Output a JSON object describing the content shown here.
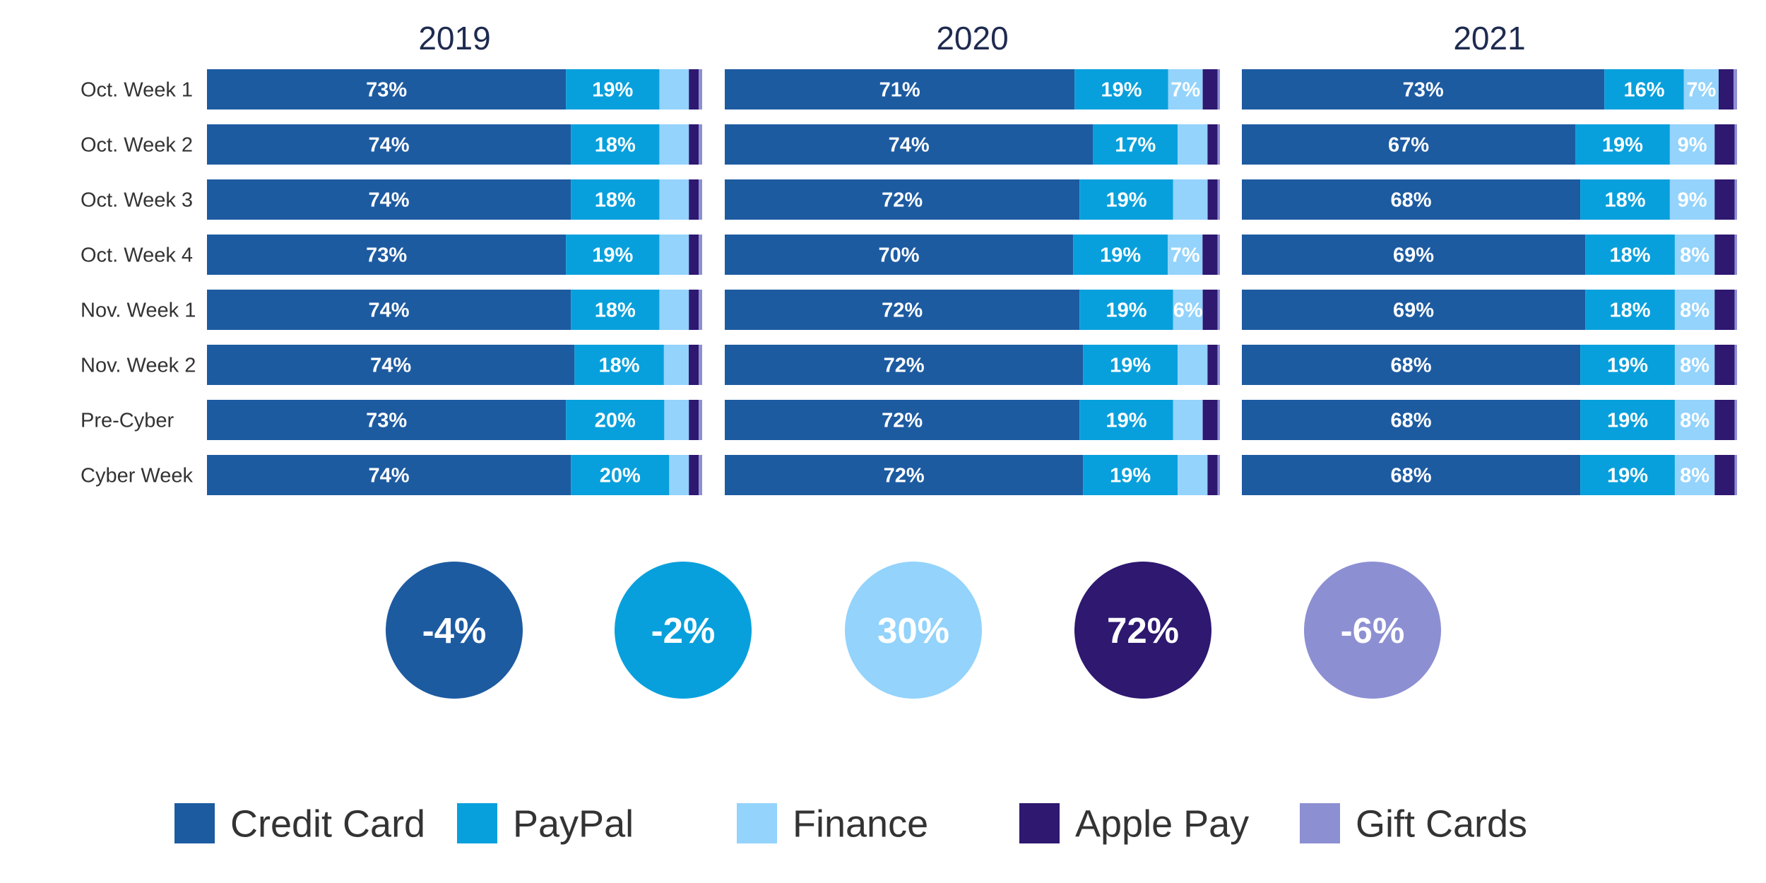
{
  "chart_data": {
    "type": "bar",
    "orientation": "horizontal",
    "stacked": "100%",
    "categories": [
      "Oct. Week 1",
      "Oct. Week 2",
      "Oct. Week 3",
      "Oct. Week 4",
      "Nov. Week 1",
      "Nov. Week 2",
      "Pre-Cyber",
      "Cyber Week"
    ],
    "segments": [
      "Credit Card",
      "PayPal",
      "Finance",
      "Apple Pay",
      "Gift Cards"
    ],
    "colors": {
      "Credit Card": "#1d5ba1",
      "PayPal": "#08a0dc",
      "Finance": "#93d3fc",
      "Apple Pay": "#2e1870",
      "Gift Cards": "#8d8fd3"
    },
    "panels": [
      {
        "title": "2019",
        "rows": [
          {
            "values": [
              73,
              19,
              6,
              2,
              0.7
            ],
            "labels": [
              "73%",
              "19%",
              "",
              "",
              ""
            ]
          },
          {
            "values": [
              74,
              18,
              6,
              2,
              0.7
            ],
            "labels": [
              "74%",
              "18%",
              "",
              "",
              ""
            ]
          },
          {
            "values": [
              74,
              18,
              6,
              2,
              0.7
            ],
            "labels": [
              "74%",
              "18%",
              "",
              "",
              ""
            ]
          },
          {
            "values": [
              73,
              19,
              6,
              2,
              0.7
            ],
            "labels": [
              "73%",
              "19%",
              "",
              "",
              ""
            ]
          },
          {
            "values": [
              74,
              18,
              6,
              2,
              0.7
            ],
            "labels": [
              "74%",
              "18%",
              "",
              "",
              ""
            ]
          },
          {
            "values": [
              74,
              18,
              5,
              2,
              0.7
            ],
            "labels": [
              "74%",
              "18%",
              "",
              "",
              ""
            ]
          },
          {
            "values": [
              73,
              20,
              5,
              2,
              0.7
            ],
            "labels": [
              "73%",
              "20%",
              "",
              "",
              ""
            ]
          },
          {
            "values": [
              74,
              20,
              4,
              2,
              0.7
            ],
            "labels": [
              "74%",
              "20%",
              "",
              "",
              ""
            ]
          }
        ]
      },
      {
        "title": "2020",
        "rows": [
          {
            "values": [
              71,
              19,
              7,
              3,
              0.5
            ],
            "labels": [
              "71%",
              "19%",
              "7%",
              "",
              ""
            ]
          },
          {
            "values": [
              74,
              17,
              6,
              2,
              0.5
            ],
            "labels": [
              "74%",
              "17%",
              "",
              "",
              ""
            ]
          },
          {
            "values": [
              72,
              19,
              7,
              2,
              0.5
            ],
            "labels": [
              "72%",
              "19%",
              "",
              "",
              ""
            ]
          },
          {
            "values": [
              70,
              19,
              7,
              3,
              0.5
            ],
            "labels": [
              "70%",
              "19%",
              "7%",
              "",
              ""
            ]
          },
          {
            "values": [
              72,
              19,
              6,
              3,
              0.5
            ],
            "labels": [
              "72%",
              "19%",
              "6%",
              "",
              ""
            ]
          },
          {
            "values": [
              72,
              19,
              6,
              2,
              0.5
            ],
            "labels": [
              "72%",
              "19%",
              "",
              "",
              ""
            ]
          },
          {
            "values": [
              72,
              19,
              6,
              3,
              0.5
            ],
            "labels": [
              "72%",
              "19%",
              "",
              "",
              ""
            ]
          },
          {
            "values": [
              72,
              19,
              6,
              2,
              0.5
            ],
            "labels": [
              "72%",
              "19%",
              "",
              "",
              ""
            ]
          }
        ]
      },
      {
        "title": "2021",
        "rows": [
          {
            "values": [
              73,
              16,
              7,
              3,
              0.7
            ],
            "labels": [
              "73%",
              "16%",
              "7%",
              "",
              ""
            ]
          },
          {
            "values": [
              67,
              19,
              9,
              4,
              0.5
            ],
            "labels": [
              "67%",
              "19%",
              "9%",
              "",
              ""
            ]
          },
          {
            "values": [
              68,
              18,
              9,
              4,
              0.5
            ],
            "labels": [
              "68%",
              "18%",
              "9%",
              "",
              ""
            ]
          },
          {
            "values": [
              69,
              18,
              8,
              4,
              0.5
            ],
            "labels": [
              "69%",
              "18%",
              "8%",
              "",
              ""
            ]
          },
          {
            "values": [
              69,
              18,
              8,
              4,
              0.5
            ],
            "labels": [
              "69%",
              "18%",
              "8%",
              "",
              ""
            ]
          },
          {
            "values": [
              68,
              19,
              8,
              4,
              0.5
            ],
            "labels": [
              "68%",
              "19%",
              "8%",
              "",
              ""
            ]
          },
          {
            "values": [
              68,
              19,
              8,
              4,
              0.5
            ],
            "labels": [
              "68%",
              "19%",
              "8%",
              "",
              ""
            ]
          },
          {
            "values": [
              68,
              19,
              8,
              4,
              0.5
            ],
            "labels": [
              "68%",
              "19%",
              "8%",
              "",
              ""
            ]
          }
        ]
      }
    ],
    "changes": [
      {
        "segment": "Credit Card",
        "label": "-4%"
      },
      {
        "segment": "PayPal",
        "label": "-2%"
      },
      {
        "segment": "Finance",
        "label": "30%"
      },
      {
        "segment": "Apple Pay",
        "label": "72%"
      },
      {
        "segment": "Gift Cards",
        "label": "-6%"
      }
    ],
    "legend": {
      "placement": "bottom",
      "items": [
        "Credit Card",
        "PayPal",
        "Finance",
        "Apple Pay",
        "Gift Cards"
      ]
    }
  }
}
